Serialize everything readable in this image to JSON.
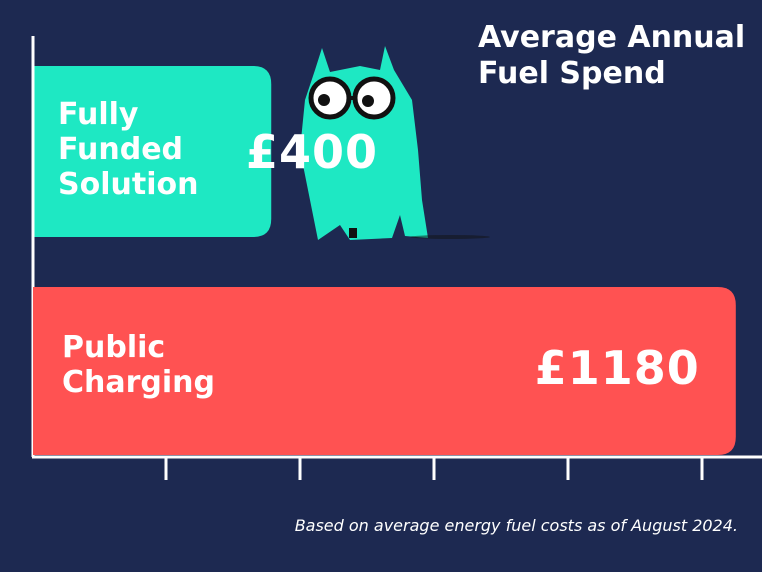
{
  "chart_data": {
    "type": "bar",
    "orientation": "horizontal",
    "title": "Average Annual Fuel Spend",
    "categories": [
      "Fully Funded Solution",
      "Public Charging"
    ],
    "values": [
      400,
      1180
    ],
    "value_labels": [
      "£400",
      "£1180"
    ],
    "colors": [
      "#1ee8c3",
      "#ff5252"
    ],
    "xlim": [
      0,
      1224
    ],
    "note": "Based on average energy fuel costs as of August 2024."
  }
}
